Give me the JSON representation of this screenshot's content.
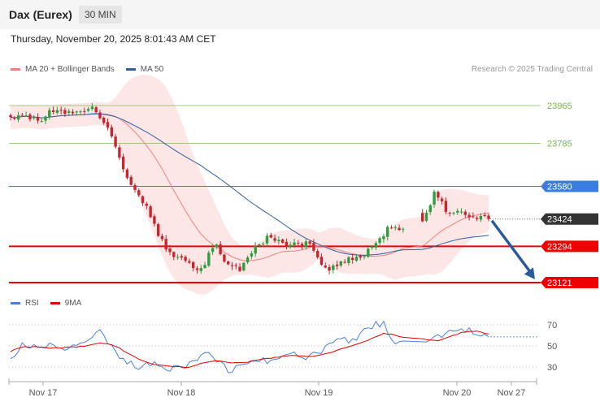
{
  "header": {
    "instrument": "Dax (Eurex)",
    "timeframe": "30 MIN",
    "datetime": "Thursday, November 20, 2025 8:01:43 AM CET",
    "credit": "Research © 2025 Trading Central"
  },
  "legend_main": [
    {
      "label": "MA 20 + Bollinger Bands",
      "color": "#f08080"
    },
    {
      "label": "MA 50",
      "color": "#2f5f9f"
    }
  ],
  "legend_rsi": [
    {
      "label": "RSI",
      "color": "#4a7fd8"
    },
    {
      "label": "9MA",
      "color": "#e00000"
    }
  ],
  "colors": {
    "resistance": "#7ab648",
    "pivot": "#3a7de0",
    "support": "#ee0000",
    "last": "#333333",
    "candle_up": "#2e9e3e",
    "candle_down": "#c8252d",
    "band": "#fde2e2",
    "arrow": "#2b5a9a"
  },
  "chart_data": [
    {
      "type": "candlestick",
      "x_ticks": [
        "Nov 17",
        "Nov 18",
        "Nov 19",
        "Nov 20",
        "Nov 27"
      ],
      "levels": [
        {
          "value": 23965,
          "label": "23965",
          "kind": "resistance"
        },
        {
          "value": 23785,
          "label": "23785",
          "kind": "resistance"
        },
        {
          "value": 23580,
          "label": "23580",
          "kind": "pivot"
        },
        {
          "value": 23424,
          "label": "23424",
          "kind": "last"
        },
        {
          "value": 23294,
          "label": "23294",
          "kind": "support"
        },
        {
          "value": 23121,
          "label": "23121",
          "kind": "support"
        }
      ],
      "forecast_target": 23121,
      "close_anchors": [
        23920,
        23905,
        23890,
        23945,
        23930,
        23918,
        23960,
        23875,
        23720,
        23560,
        23470,
        23330,
        23250,
        23215,
        23180,
        23300,
        23205,
        23185,
        23290,
        23340,
        23300,
        23310,
        23305,
        23180,
        23205,
        23240,
        23262,
        23320,
        23390,
        23380,
        23555,
        23450,
        23445,
        23440,
        23424
      ]
    },
    {
      "type": "line",
      "name": "RSI",
      "y_ticks": [
        70,
        50,
        30
      ],
      "rsi_anchors": [
        40,
        51,
        48,
        50,
        48,
        50,
        53,
        63,
        45,
        34,
        30,
        33,
        30,
        28,
        33,
        44,
        37,
        26,
        33,
        38,
        35,
        40,
        42,
        38,
        43,
        53,
        55,
        58,
        68,
        72,
        50,
        54,
        57,
        65,
        67,
        63,
        60
      ],
      "ma_anchors": [
        45,
        49,
        49,
        48,
        48,
        49,
        50,
        53,
        51,
        44,
        37,
        33,
        31,
        30,
        30,
        34,
        36,
        34,
        34,
        36,
        38,
        40,
        41,
        40,
        41,
        44,
        48,
        52,
        56,
        62,
        60,
        56,
        55,
        59,
        63,
        64,
        61
      ]
    }
  ]
}
